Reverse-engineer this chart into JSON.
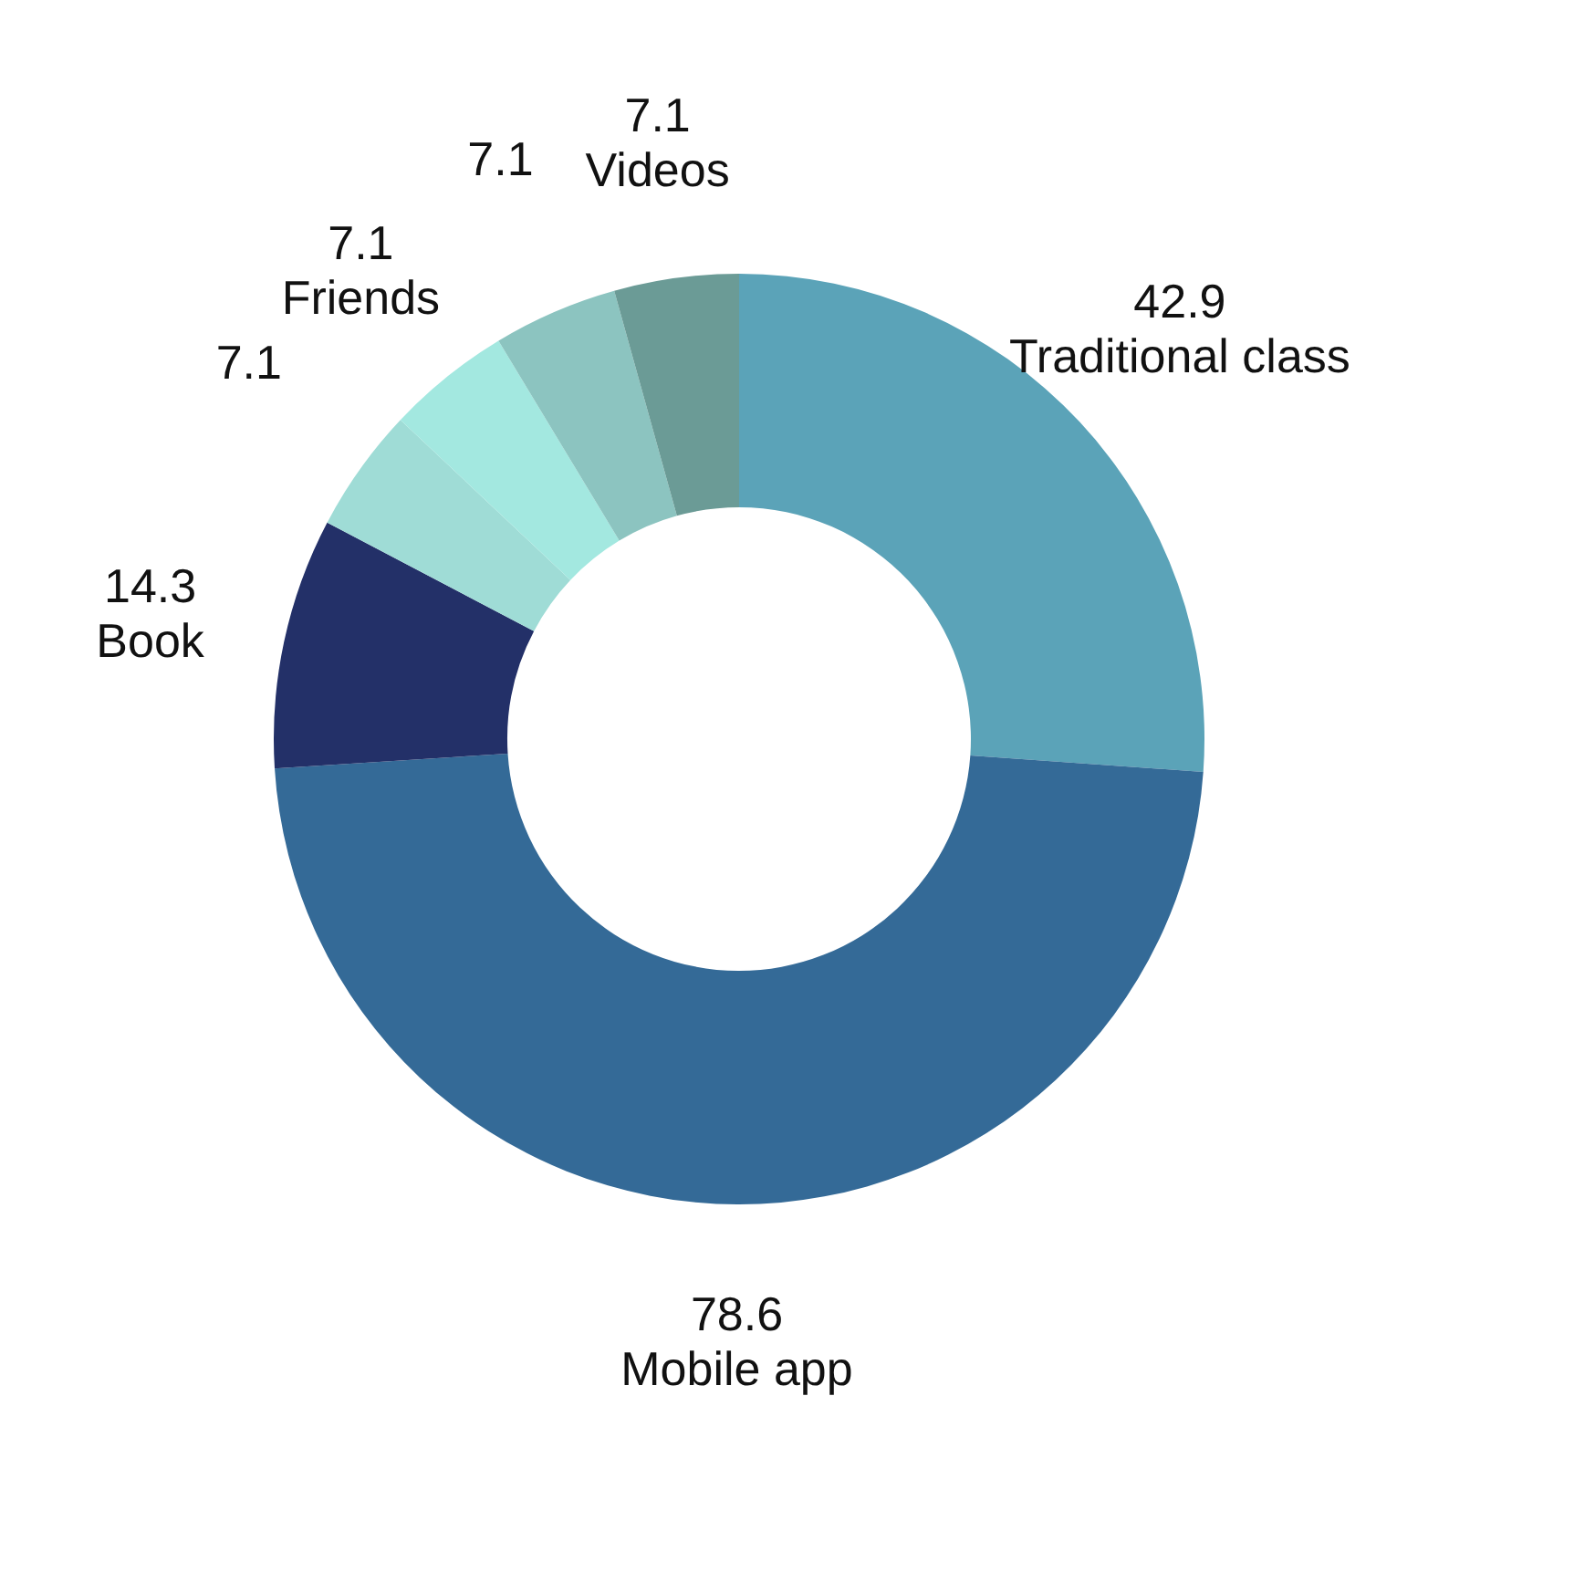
{
  "chart_data": {
    "type": "donut",
    "data_labels": true,
    "legend": false,
    "categories": [
      "Traditional class",
      "Mobile app",
      "Book",
      null,
      "Friends",
      null,
      "Videos"
    ],
    "values": [
      42.9,
      78.6,
      14.3,
      7.1,
      7.1,
      7.1,
      7.1
    ],
    "colors": [
      "#5ba3b8",
      "#346a97",
      "#233068",
      "#9fdcd6",
      "#a3e8e0",
      "#8cc4c0",
      "#6b9b96"
    ]
  }
}
